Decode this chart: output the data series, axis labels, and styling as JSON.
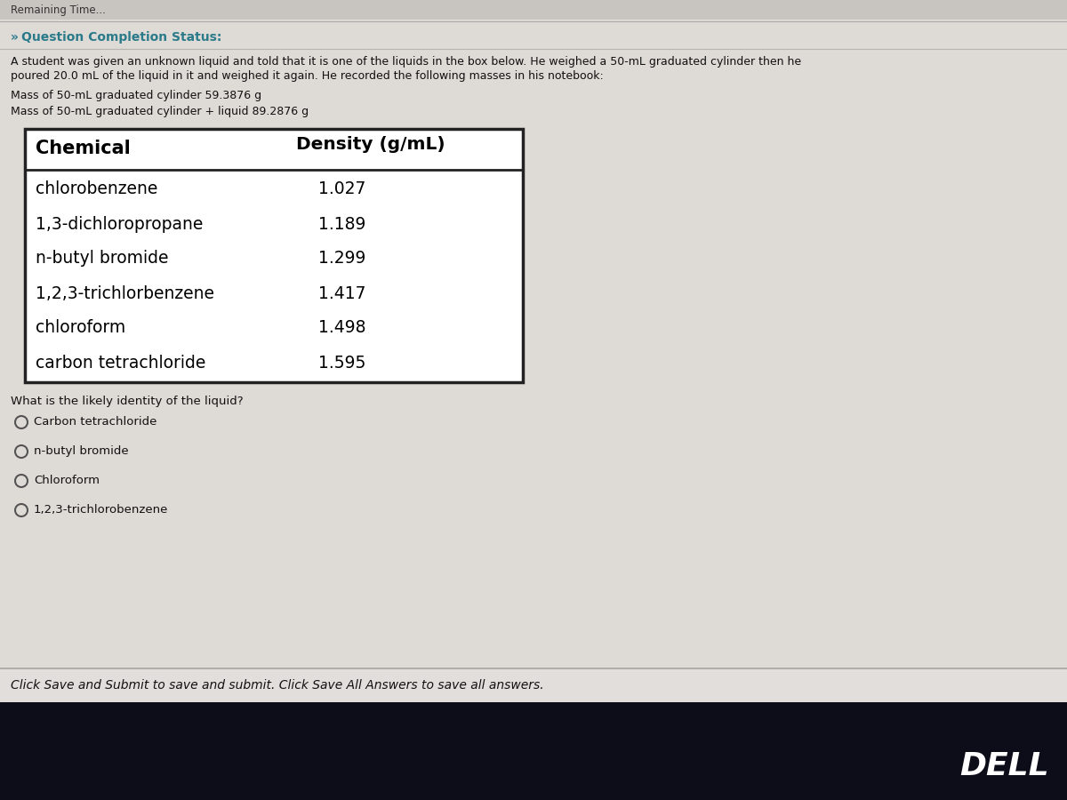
{
  "page_bg": "#d8d4d0",
  "content_bg": "#e8e6e2",
  "top_bar_color": "#c8c5c0",
  "header_text": "Remaining Time...",
  "section_color": "#2a7a8a",
  "section_label": "Question Completion Status:",
  "para_line1": "A student was given an unknown liquid and told that it is one of the liquids in the box below. He weighed a 50-mL graduated cylinder then he",
  "para_line2": "poured 20.0 mL of the liquid in it and weighed it again. He recorded the following masses in his notebook:",
  "mass1_label": "Mass of 50-mL graduated cylinder 59.3876 g",
  "mass2_label": "Mass of 50-mL graduated cylinder + liquid 89.2876 g",
  "table_header_col1": "Chemical",
  "table_header_col2": "Density (g/mL)",
  "table_chemicals": [
    "chlorobenzene",
    "1,3-dichloropropane",
    "n-butyl bromide",
    "1,2,3-trichlorbenzene",
    "chloroform",
    "carbon tetrachloride"
  ],
  "table_densities": [
    "1.027",
    "1.189",
    "1.299",
    "1.417",
    "1.498",
    "1.595"
  ],
  "question": "What is the likely identity of the liquid?",
  "choices": [
    "Carbon tetrachloride",
    "n-butyl bromide",
    "Chloroform",
    "1,2,3-trichlorobenzene"
  ],
  "footer": "Click Save and Submit to save and submit. Click Save All Answers to save all answers.",
  "dell_text": "DELL",
  "bottom_bar_color": "#0d0d1a",
  "separator_color": "#b0aca8",
  "table_border_color": "#222222",
  "table_bg": "#ffffff",
  "text_color": "#111111"
}
